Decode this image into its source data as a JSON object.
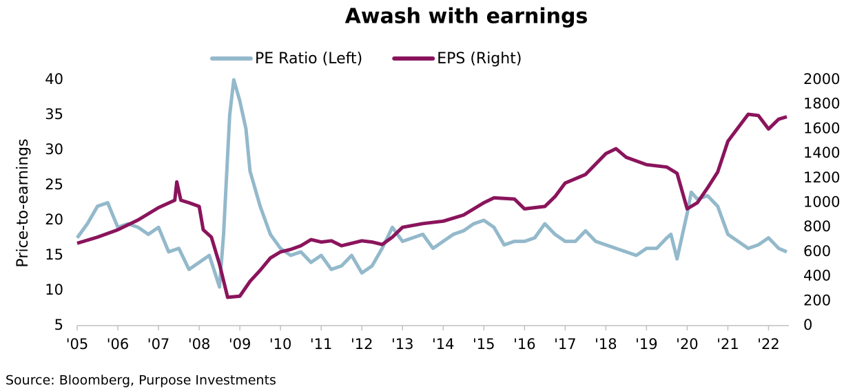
{
  "chart_data": {
    "type": "line",
    "title": "Awash with earnings",
    "y_label": "Price-to-earnings",
    "source": "Source: Bloomberg, Purpose Investments",
    "legend": "top",
    "xlim": [
      2005,
      2022.5
    ],
    "xticks": [
      {
        "value": 2005,
        "label": "'05"
      },
      {
        "value": 2006,
        "label": "'06"
      },
      {
        "value": 2007,
        "label": "'07"
      },
      {
        "value": 2008,
        "label": "'08"
      },
      {
        "value": 2009,
        "label": "'09"
      },
      {
        "value": 2010,
        "label": "'10"
      },
      {
        "value": 2011,
        "label": "'11"
      },
      {
        "value": 2012,
        "label": "'12"
      },
      {
        "value": 2013,
        "label": "'13"
      },
      {
        "value": 2014,
        "label": "'14"
      },
      {
        "value": 2015,
        "label": "'15"
      },
      {
        "value": 2016,
        "label": "'16"
      },
      {
        "value": 2017,
        "label": "'17"
      },
      {
        "value": 2018,
        "label": "'18"
      },
      {
        "value": 2019,
        "label": "'19"
      },
      {
        "value": 2020,
        "label": "'20"
      },
      {
        "value": 2021,
        "label": "'21"
      },
      {
        "value": 2022,
        "label": "'22"
      }
    ],
    "ylim": [
      5,
      40
    ],
    "yticks": [
      5,
      10,
      15,
      20,
      25,
      30,
      35,
      40
    ],
    "y2lim": [
      0,
      2000
    ],
    "y2ticks": [
      0,
      200,
      400,
      600,
      800,
      1000,
      1200,
      1400,
      1600,
      1800,
      2000
    ],
    "series": [
      {
        "name": "PE Ratio (Left)",
        "color": "#93b9cb",
        "x": [
          2005,
          2005.25,
          2005.5,
          2005.75,
          2006,
          2006.25,
          2006.5,
          2006.75,
          2007,
          2007.25,
          2007.5,
          2007.75,
          2008,
          2008.25,
          2008.5,
          2008.6,
          2008.75,
          2008.85,
          2009,
          2009.15,
          2009.25,
          2009.5,
          2009.75,
          2010,
          2010.25,
          2010.5,
          2010.75,
          2011,
          2011.25,
          2011.5,
          2011.75,
          2012,
          2012.25,
          2012.5,
          2012.75,
          2013,
          2013.25,
          2013.5,
          2013.75,
          2014,
          2014.25,
          2014.5,
          2014.75,
          2015,
          2015.25,
          2015.5,
          2015.75,
          2016,
          2016.25,
          2016.5,
          2016.75,
          2017,
          2017.25,
          2017.5,
          2017.75,
          2018,
          2018.25,
          2018.5,
          2018.75,
          2019,
          2019.25,
          2019.5,
          2019.6,
          2019.75,
          2020,
          2020.1,
          2020.25,
          2020.5,
          2020.75,
          2021,
          2021.25,
          2021.5,
          2021.75,
          2022,
          2022.25,
          2022.45
        ],
        "values": [
          17.5,
          19.5,
          22,
          22.5,
          19,
          19.5,
          19,
          18,
          19,
          15.5,
          16,
          13,
          14,
          15,
          10.5,
          18,
          35,
          40,
          37,
          33,
          27,
          22,
          18,
          16,
          15,
          15.5,
          14,
          15,
          13,
          13.5,
          15,
          12.5,
          13.5,
          16,
          19,
          17,
          17.5,
          18,
          16,
          17,
          18,
          18.5,
          19.5,
          20,
          19,
          16.5,
          17,
          17,
          17.5,
          19.5,
          18,
          17,
          17,
          18.5,
          17,
          16.5,
          16,
          15.5,
          15,
          16,
          16,
          17.5,
          18,
          14.5,
          21,
          24,
          23,
          23.5,
          22,
          18,
          17,
          16,
          16.5,
          17.5,
          16,
          15.5
        ]
      },
      {
        "name": "EPS (Right)",
        "color": "#8a145c",
        "axis": "y2",
        "x": [
          2005,
          2005.5,
          2006,
          2006.5,
          2007,
          2007.4,
          2007.45,
          2007.55,
          2007.75,
          2008,
          2008.1,
          2008.3,
          2008.5,
          2008.7,
          2009,
          2009.25,
          2009.5,
          2009.75,
          2010,
          2010.25,
          2010.5,
          2010.75,
          2011,
          2011.25,
          2011.5,
          2011.75,
          2012,
          2012.25,
          2012.5,
          2012.75,
          2013,
          2013.5,
          2014,
          2014.5,
          2015,
          2015.25,
          2015.75,
          2016,
          2016.5,
          2016.75,
          2017,
          2017.5,
          2018,
          2018.25,
          2018.5,
          2019,
          2019.5,
          2019.75,
          2020,
          2020.25,
          2020.5,
          2020.75,
          2021,
          2021.25,
          2021.5,
          2021.75,
          2022,
          2022.25,
          2022.45
        ],
        "values": [
          670,
          720,
          780,
          860,
          960,
          1020,
          1170,
          1020,
          1000,
          970,
          780,
          720,
          500,
          230,
          240,
          360,
          450,
          550,
          600,
          620,
          650,
          700,
          680,
          690,
          650,
          670,
          690,
          680,
          660,
          720,
          800,
          830,
          850,
          900,
          1000,
          1040,
          1030,
          950,
          970,
          1050,
          1160,
          1230,
          1400,
          1440,
          1370,
          1310,
          1290,
          1240,
          950,
          1000,
          1120,
          1250,
          1500,
          1610,
          1720,
          1710,
          1600,
          1680,
          1700
        ]
      }
    ]
  }
}
